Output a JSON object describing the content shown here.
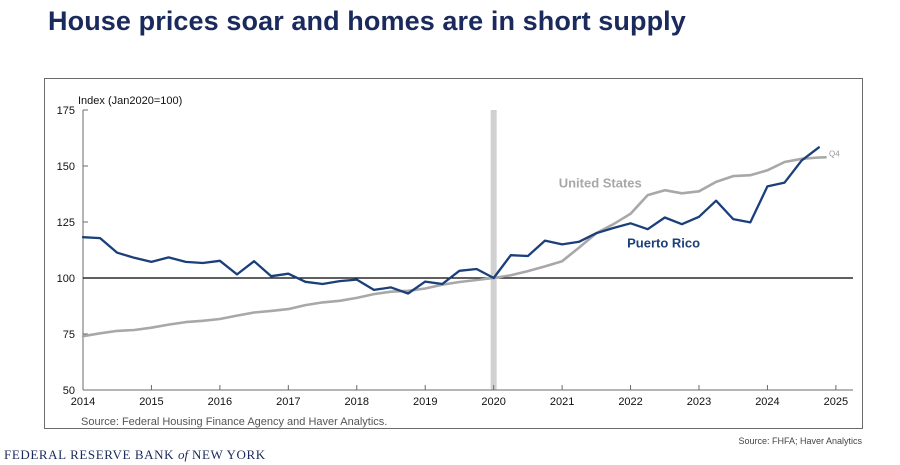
{
  "page": {
    "title": "House prices soar and homes are in short supply",
    "footer_source": "Source: FHFA; Haver Analytics",
    "footer_logo_part1": "FEDERAL RESERVE BANK",
    "footer_logo_of": "of",
    "footer_logo_part2": "NEW YORK"
  },
  "chart_data": {
    "type": "line",
    "ylabel": "Index (Jan2020=100)",
    "source_note": "Source: Federal Housing Finance Agency and Haver Analytics.",
    "xlim": [
      2014,
      2025.25
    ],
    "ylim": [
      50,
      175
    ],
    "yticks": [
      50,
      75,
      100,
      125,
      150,
      175
    ],
    "xticks": [
      "2014",
      "2015",
      "2016",
      "2017",
      "2018",
      "2019",
      "2020",
      "2021",
      "2022",
      "2023",
      "2024",
      "2025"
    ],
    "reference_line": 100,
    "highlight_x": 2020,
    "grid": false,
    "colors": {
      "puerto_rico": "#1b3f7a",
      "united_states": "#a8a8a8",
      "reference": "#000000",
      "highlight": "#d0d0d0"
    },
    "series": [
      {
        "name": "Puerto Rico",
        "color": "#1b3f7a",
        "x": [
          2014.0,
          2014.25,
          2014.5,
          2014.75,
          2015.0,
          2015.25,
          2015.5,
          2015.75,
          2016.0,
          2016.25,
          2016.5,
          2016.75,
          2017.0,
          2017.25,
          2017.5,
          2017.75,
          2018.0,
          2018.25,
          2018.5,
          2018.75,
          2019.0,
          2019.25,
          2019.5,
          2019.75,
          2020.0,
          2020.25,
          2020.5,
          2020.75,
          2021.0,
          2021.25,
          2021.5,
          2021.75,
          2022.0,
          2022.25,
          2022.5,
          2022.75,
          2023.0,
          2023.25,
          2023.5,
          2023.75,
          2024.0,
          2024.25,
          2024.5,
          2024.75
        ],
        "values": [
          118.2,
          117.8,
          111.3,
          109.0,
          107.2,
          109.2,
          107.2,
          106.7,
          107.7,
          101.6,
          107.5,
          100.8,
          101.9,
          98.3,
          97.3,
          98.6,
          99.3,
          94.7,
          95.8,
          93.1,
          98.4,
          97.3,
          103.2,
          104.0,
          100.0,
          110.2,
          109.8,
          116.7,
          115.0,
          116.2,
          120.0,
          122.3,
          124.4,
          121.8,
          127.0,
          124.0,
          127.3,
          134.5,
          126.3,
          124.8,
          140.9,
          142.6,
          152.5,
          158.3
        ]
      },
      {
        "name": "United States",
        "color": "#a8a8a8",
        "x": [
          2014.0,
          2014.25,
          2014.5,
          2014.75,
          2015.0,
          2015.25,
          2015.5,
          2015.75,
          2016.0,
          2016.25,
          2016.5,
          2016.75,
          2017.0,
          2017.25,
          2017.5,
          2017.75,
          2018.0,
          2018.25,
          2018.5,
          2018.75,
          2019.0,
          2019.25,
          2019.5,
          2019.75,
          2020.0,
          2020.25,
          2020.5,
          2020.75,
          2021.0,
          2021.25,
          2021.5,
          2021.75,
          2022.0,
          2022.25,
          2022.5,
          2022.75,
          2023.0,
          2023.25,
          2023.5,
          2023.75,
          2024.0,
          2024.25,
          2024.5,
          2024.75,
          2024.85
        ],
        "values": [
          74.0,
          75.3,
          76.4,
          76.8,
          77.8,
          79.2,
          80.3,
          80.9,
          81.7,
          83.2,
          84.6,
          85.3,
          86.1,
          87.9,
          89.1,
          89.8,
          91.1,
          92.8,
          93.9,
          94.3,
          95.3,
          97.0,
          98.2,
          99.1,
          100.0,
          101.2,
          103.1,
          105.2,
          107.5,
          113.6,
          120.0,
          124.0,
          128.7,
          137.0,
          139.2,
          137.8,
          138.7,
          142.9,
          145.5,
          145.9,
          148.1,
          151.8,
          153.2,
          153.8,
          153.9
        ]
      }
    ],
    "annotations": {
      "united_states_label": "United States",
      "puerto_rico_label": "Puerto Rico",
      "q4_label": "Q4"
    }
  }
}
